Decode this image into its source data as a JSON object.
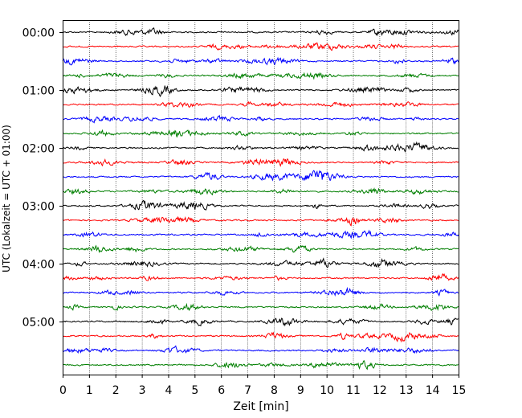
{
  "chart_data": {
    "type": "line",
    "title": "",
    "xlabel": "Zeit  [min]",
    "ylabel": "UTC (Lokalzeit = UTC + 01:00)",
    "xlim": [
      0,
      15
    ],
    "x_ticks": [
      "0",
      "1",
      "2",
      "3",
      "4",
      "5",
      "6",
      "7",
      "8",
      "9",
      "10",
      "11",
      "12",
      "13",
      "14",
      "15"
    ],
    "y_ticks": [
      "00:00",
      "01:00",
      "02:00",
      "03:00",
      "04:00",
      "05:00"
    ],
    "grid": "vertical dotted lines at each minute",
    "legend": "none",
    "trace_interval_minutes": 15,
    "trace_count": 24,
    "trace_colors": [
      "#000000",
      "#ff0000",
      "#0000ff",
      "#007f00"
    ],
    "traces": [
      {
        "start": "00:00",
        "color": "#000000"
      },
      {
        "start": "00:15",
        "color": "#ff0000"
      },
      {
        "start": "00:30",
        "color": "#0000ff"
      },
      {
        "start": "00:45",
        "color": "#007f00"
      },
      {
        "start": "01:00",
        "color": "#000000"
      },
      {
        "start": "01:15",
        "color": "#ff0000"
      },
      {
        "start": "01:30",
        "color": "#0000ff"
      },
      {
        "start": "01:45",
        "color": "#007f00"
      },
      {
        "start": "02:00",
        "color": "#000000"
      },
      {
        "start": "02:15",
        "color": "#ff0000"
      },
      {
        "start": "02:30",
        "color": "#0000ff"
      },
      {
        "start": "02:45",
        "color": "#007f00"
      },
      {
        "start": "03:00",
        "color": "#000000"
      },
      {
        "start": "03:15",
        "color": "#ff0000"
      },
      {
        "start": "03:30",
        "color": "#0000ff"
      },
      {
        "start": "03:45",
        "color": "#007f00"
      },
      {
        "start": "04:00",
        "color": "#000000"
      },
      {
        "start": "04:15",
        "color": "#ff0000"
      },
      {
        "start": "04:30",
        "color": "#0000ff"
      },
      {
        "start": "04:45",
        "color": "#007f00"
      },
      {
        "start": "05:00",
        "color": "#000000"
      },
      {
        "start": "05:15",
        "color": "#ff0000"
      },
      {
        "start": "05:30",
        "color": "#0000ff"
      },
      {
        "start": "05:45",
        "color": "#007f00"
      }
    ]
  }
}
